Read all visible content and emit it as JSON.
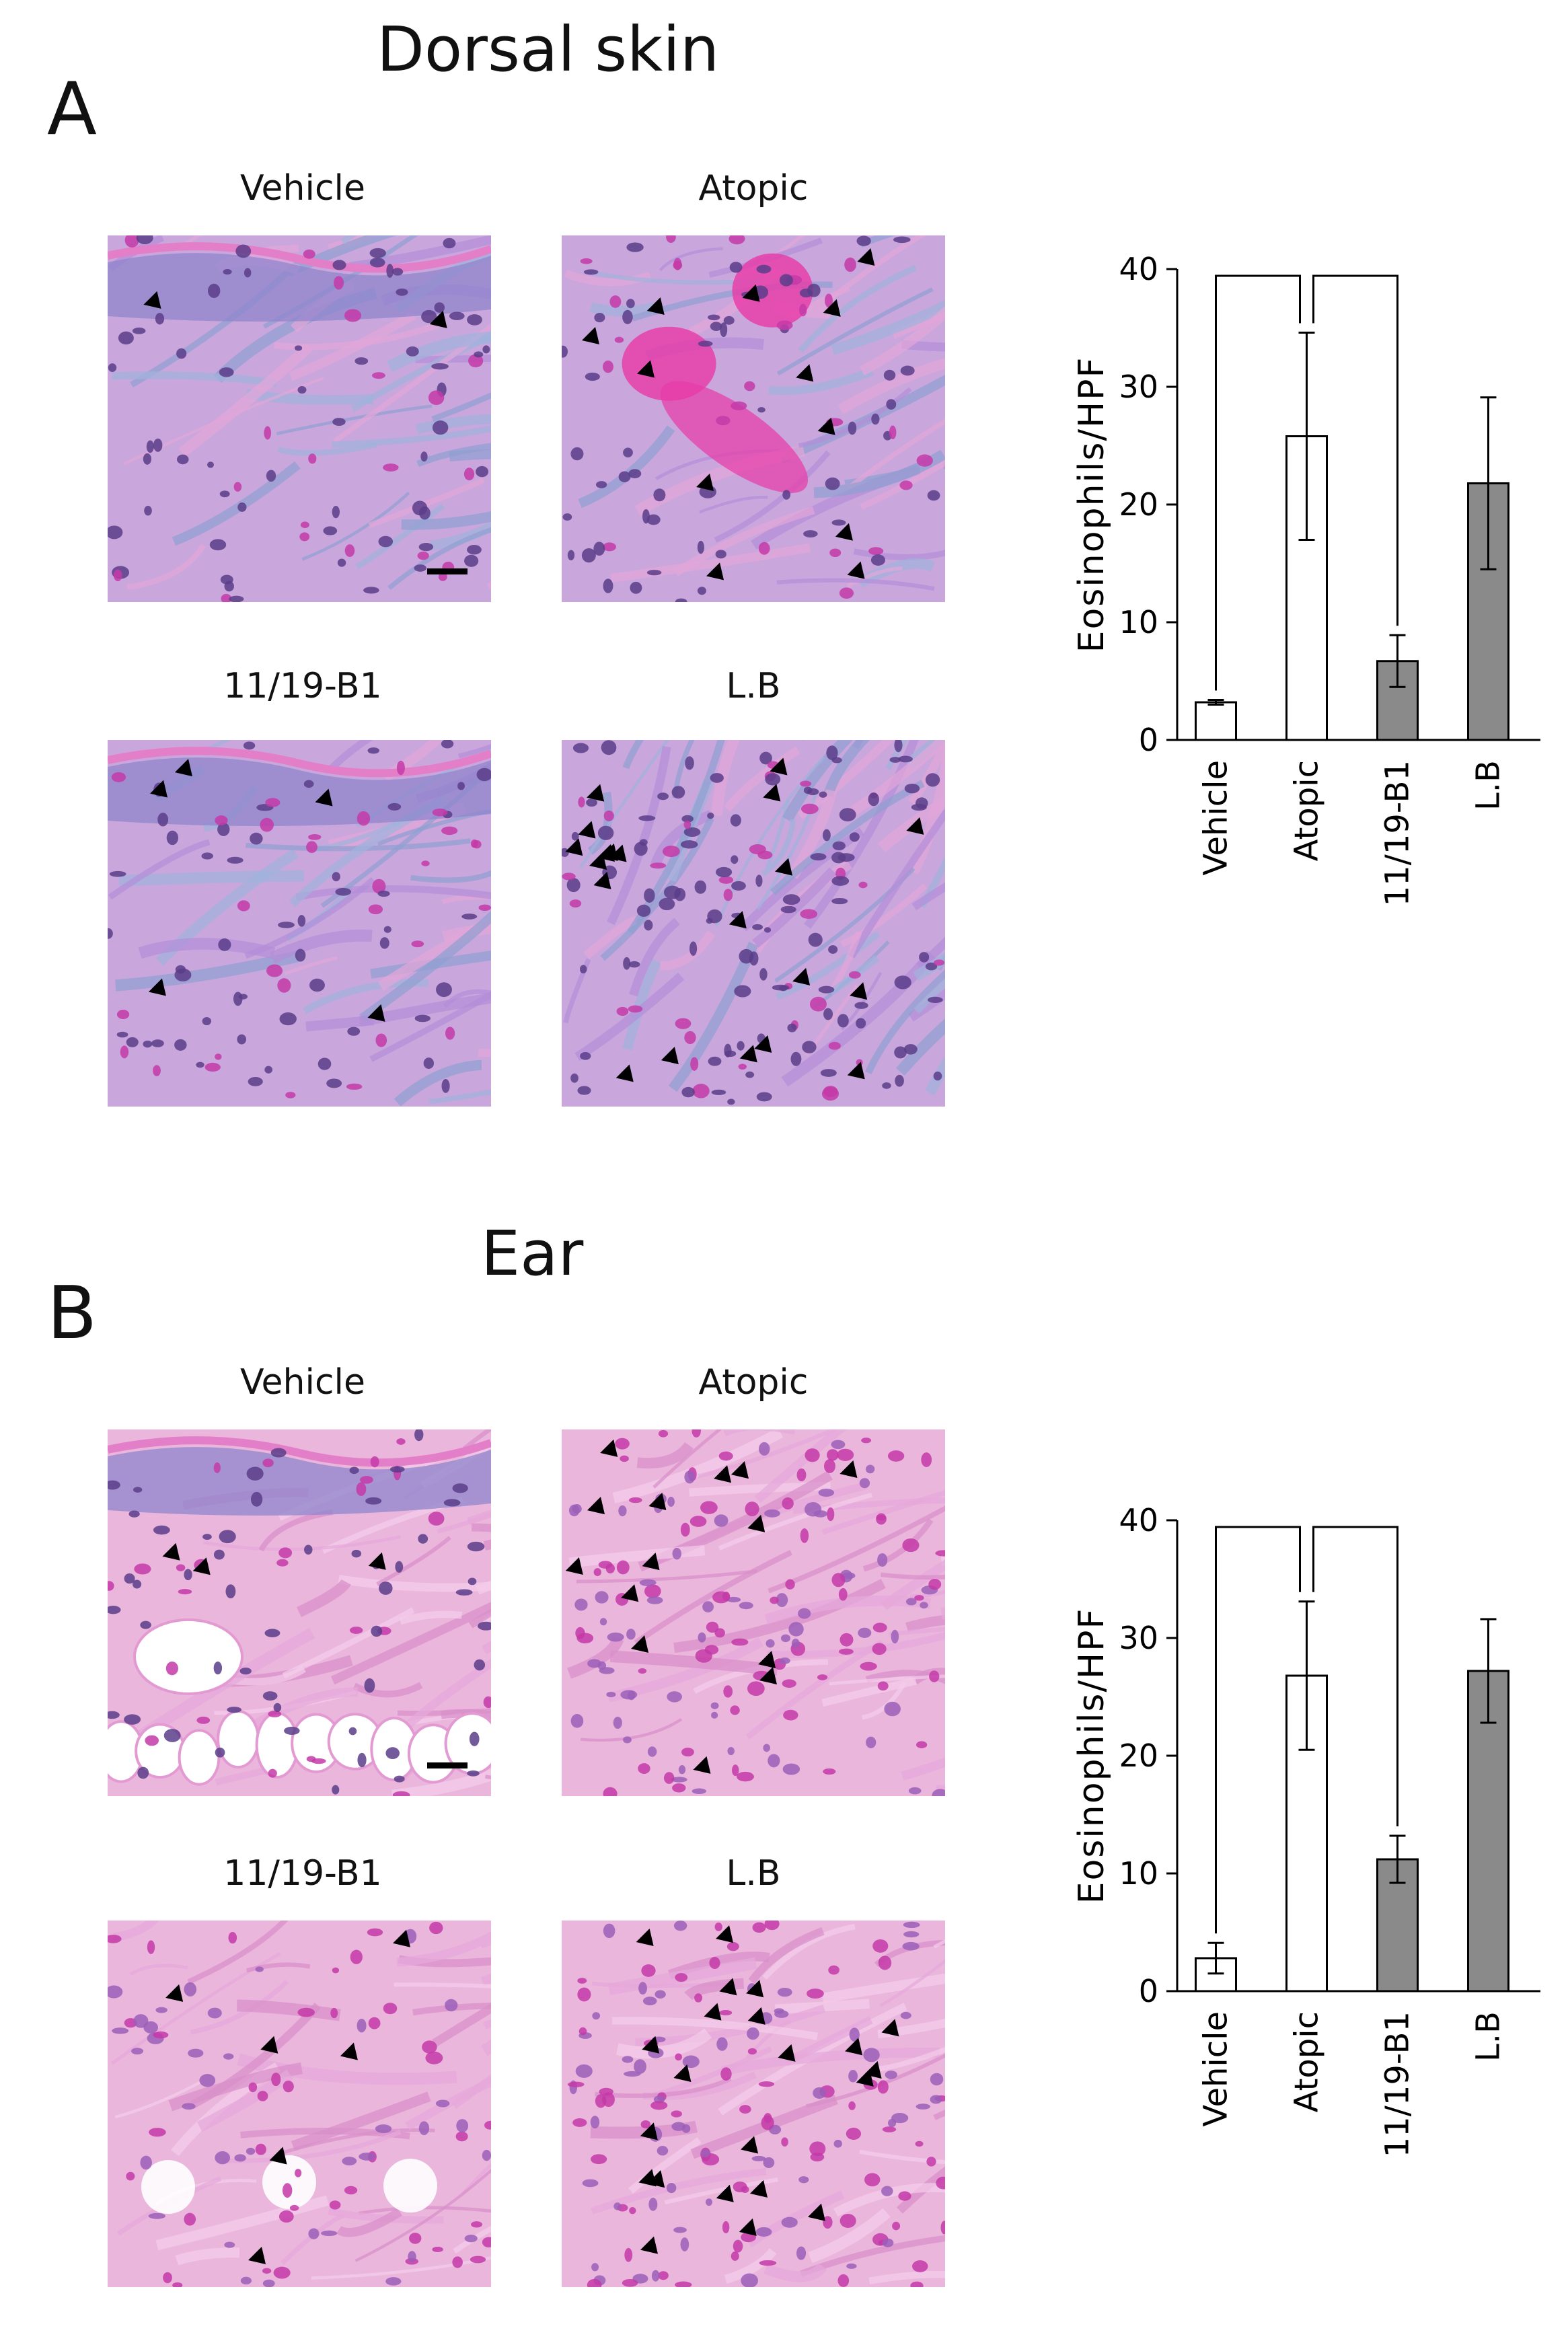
{
  "panel_a": {
    "letter": "A",
    "title": "Dorsal skin",
    "image_labels": [
      "Vehicle",
      "Atopic",
      "11/19-B1",
      "L.B"
    ]
  },
  "panel_b": {
    "letter": "B",
    "title": "Ear",
    "image_labels": [
      "Vehicle",
      "Atopic",
      "11/19-B1",
      "L.B"
    ]
  },
  "colors": {
    "tissue_pink": "#e7a3d6",
    "stain_purple": "#9a7ad0",
    "nucleus_dark": "#5a3d8a",
    "eosinophil_magenta": "#c43aa8",
    "bar_grey": "#8a8a8a",
    "bar_white": "#ffffff"
  },
  "chart_data": [
    {
      "type": "bar",
      "panel": "A",
      "categories": [
        "Vehicle",
        "Atopic",
        "11/19-B1",
        "L.B"
      ],
      "values": [
        3.2,
        25.8,
        6.7,
        21.8
      ],
      "errors": [
        0.2,
        8.8,
        2.2,
        7.3
      ],
      "bar_fill": [
        "white",
        "white",
        "grey",
        "grey"
      ],
      "ylabel": "Eosinophils/HPF",
      "ylim": [
        0,
        40
      ],
      "yticks": [
        0,
        10,
        20,
        30,
        40
      ],
      "significance": [
        {
          "from": "Vehicle",
          "to": "Atopic",
          "label": "**"
        },
        {
          "from": "Atopic",
          "to": "11/19-B1",
          "label": "**"
        }
      ]
    },
    {
      "type": "bar",
      "panel": "B",
      "categories": [
        "Vehicle",
        "Atopic",
        "11/19-B1",
        "L.B"
      ],
      "values": [
        2.8,
        26.8,
        11.2,
        27.2
      ],
      "errors": [
        1.3,
        6.3,
        2.0,
        4.4
      ],
      "bar_fill": [
        "white",
        "white",
        "grey",
        "grey"
      ],
      "ylabel": "Eosinophils/HPF",
      "ylim": [
        0,
        40
      ],
      "yticks": [
        0,
        10,
        20,
        30,
        40
      ],
      "significance": [
        {
          "from": "Vehicle",
          "to": "Atopic",
          "label": "***"
        },
        {
          "from": "Atopic",
          "to": "11/19-B1",
          "label": "**"
        }
      ]
    }
  ]
}
